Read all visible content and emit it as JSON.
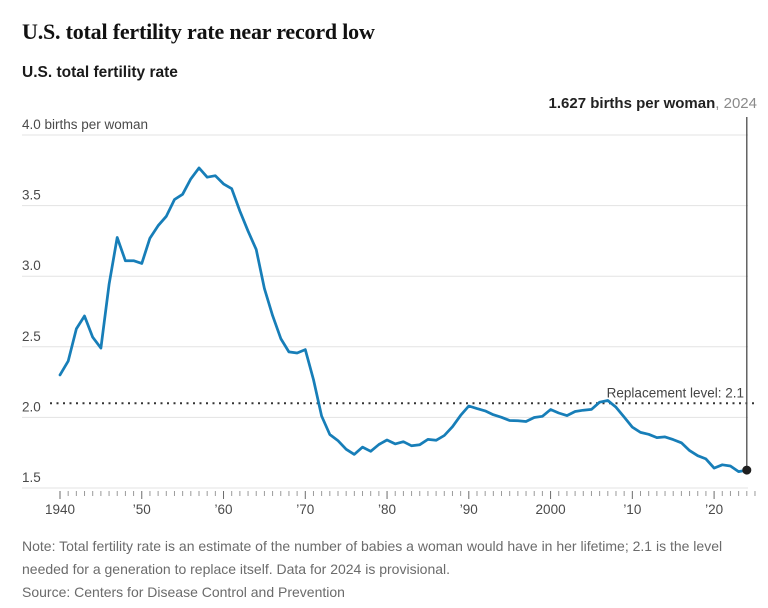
{
  "header": {
    "title": "U.S. total fertility rate near record low",
    "subtitle": "U.S. total fertility rate"
  },
  "annotation": {
    "value_label": "1.627 births per woman",
    "year_suffix": ", 2024"
  },
  "chart_data": {
    "type": "line",
    "series_name": "U.S. total fertility rate",
    "unit": "births per woman",
    "x_start_year": 1940,
    "x_end_year": 2024,
    "x_interval": 1,
    "values": [
      2.301,
      2.399,
      2.628,
      2.718,
      2.568,
      2.491,
      2.943,
      3.274,
      3.109,
      3.11,
      3.091,
      3.269,
      3.358,
      3.424,
      3.543,
      3.58,
      3.689,
      3.767,
      3.701,
      3.712,
      3.654,
      3.62,
      3.461,
      3.319,
      3.19,
      2.913,
      2.721,
      2.558,
      2.464,
      2.456,
      2.48,
      2.267,
      2.01,
      1.879,
      1.835,
      1.774,
      1.738,
      1.79,
      1.76,
      1.808,
      1.84,
      1.812,
      1.828,
      1.799,
      1.807,
      1.844,
      1.838,
      1.872,
      1.934,
      2.014,
      2.081,
      2.062,
      2.046,
      2.019,
      2.001,
      1.978,
      1.976,
      1.971,
      1.999,
      2.008,
      2.056,
      2.031,
      2.013,
      2.042,
      2.051,
      2.057,
      2.108,
      2.12,
      2.072,
      2.002,
      1.931,
      1.894,
      1.88,
      1.857,
      1.862,
      1.843,
      1.82,
      1.765,
      1.729,
      1.706,
      1.641,
      1.664,
      1.656,
      1.616,
      1.627
    ],
    "ylim": [
      1.5,
      4.0
    ],
    "xlim": [
      1940,
      2025
    ],
    "grid": true,
    "y_ticks": [
      {
        "value": 4.0,
        "label": "4.0 births per woman"
      },
      {
        "value": 3.5,
        "label": "3.5"
      },
      {
        "value": 3.0,
        "label": "3.0"
      },
      {
        "value": 2.5,
        "label": "2.5"
      },
      {
        "value": 2.0,
        "label": "2.0"
      },
      {
        "value": 1.5,
        "label": "1.5"
      }
    ],
    "x_ticks": [
      {
        "year": 1940,
        "label": "1940"
      },
      {
        "year": 1950,
        "label": "’50"
      },
      {
        "year": 1960,
        "label": "’60"
      },
      {
        "year": 1970,
        "label": "’70"
      },
      {
        "year": 1980,
        "label": "’80"
      },
      {
        "year": 1990,
        "label": "’90"
      },
      {
        "year": 2000,
        "label": "2000"
      },
      {
        "year": 2010,
        "label": "’10"
      },
      {
        "year": 2020,
        "label": "’20"
      }
    ],
    "reference_line": {
      "value": 2.1,
      "label": "Replacement level: 2.1",
      "style": "dotted"
    },
    "endpoint": {
      "year": 2024,
      "value": 1.627
    },
    "colors": {
      "line": "#177eb8",
      "grid": "#e3e3e3",
      "reference": "#333333",
      "endpoint_dot": "#1f1f1f",
      "annotation_line": "#4a4a4a",
      "tick_minor": "#9a9a9a",
      "tick_major": "#6b6b6b"
    }
  },
  "footer": {
    "note": "Note: Total fertility rate is an estimate of the number of babies a woman would have in her lifetime; 2.1 is the level needed for a generation to replace itself. Data for 2024 is provisional.",
    "source": "Source: Centers for Disease Control and Prevention"
  }
}
